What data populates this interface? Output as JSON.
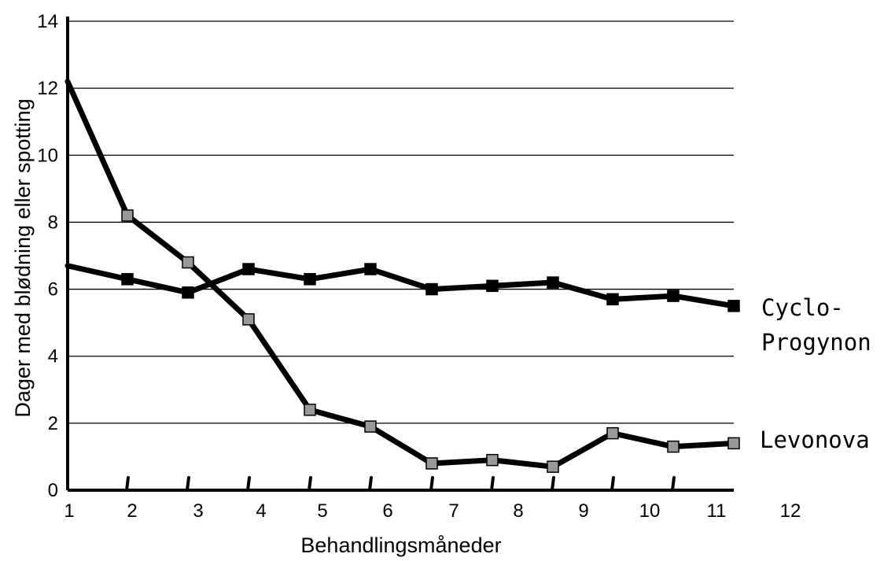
{
  "chart_data": {
    "type": "line",
    "title": "",
    "xlabel": "Behandlingsmåneder",
    "ylabel": "Dager med blødning eller spotting",
    "x": [
      1,
      2,
      3,
      4,
      5,
      6,
      7,
      8,
      9,
      10,
      11,
      12
    ],
    "x_tick_labels": [
      "1",
      "2",
      "3",
      "4",
      "5",
      "6",
      "7",
      "8",
      "9",
      "10",
      "11",
      "12"
    ],
    "y_tick_labels": [
      "0",
      "2",
      "4",
      "6",
      "8",
      "10",
      "12",
      "14"
    ],
    "xlim": [
      1,
      12
    ],
    "ylim": [
      0,
      14
    ],
    "grid": "horizontal",
    "series": [
      {
        "name": "Cyclo-Progynon",
        "label_lines": [
          "Cyclo-",
          "Progynon"
        ],
        "x": [
          1,
          2,
          3,
          4,
          5,
          6,
          7,
          8,
          9,
          10,
          11,
          12
        ],
        "values": [
          6.7,
          6.3,
          5.9,
          6.6,
          6.3,
          6.6,
          6.0,
          6.1,
          6.2,
          5.7,
          5.8,
          5.5
        ],
        "marker_color": "#000000",
        "line_color": "#000000"
      },
      {
        "name": "Levonova",
        "label_lines": [
          "Levonova"
        ],
        "x": [
          1,
          2,
          3,
          4,
          5,
          6,
          7,
          8,
          9,
          10,
          11,
          12
        ],
        "values": [
          12.2,
          8.2,
          6.8,
          5.1,
          2.4,
          1.9,
          0.8,
          0.9,
          0.7,
          1.7,
          1.3,
          1.4
        ],
        "marker_color": "#999999",
        "line_color": "#000000"
      }
    ]
  }
}
